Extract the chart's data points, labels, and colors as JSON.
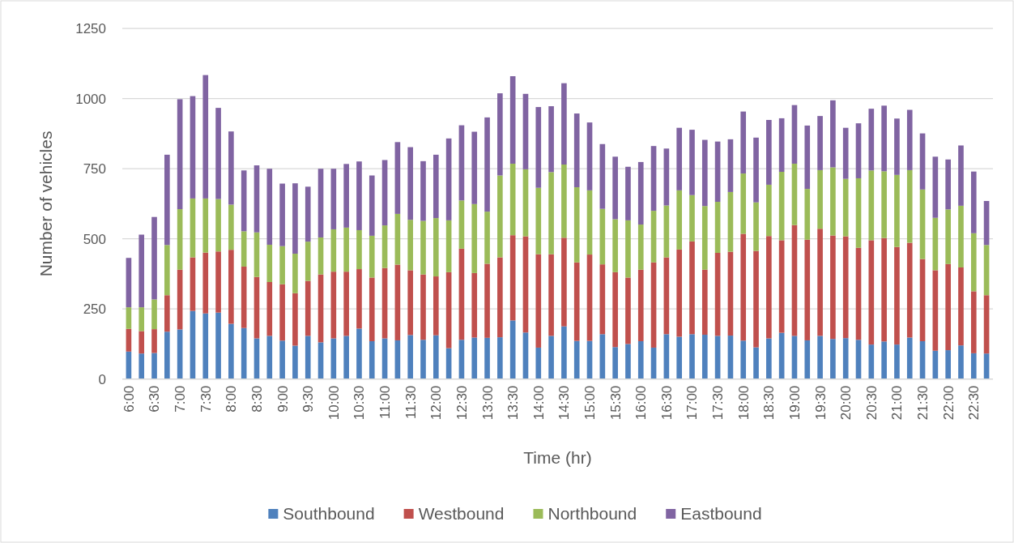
{
  "chart_data": {
    "type": "bar",
    "stacked": true,
    "xlabel": "Time (hr)",
    "ylabel": "Number of vehicles",
    "categories": [
      "6:00",
      null,
      "6:30",
      null,
      "7:00",
      null,
      "7:30",
      null,
      "8:00",
      null,
      "8:30",
      null,
      "9:00",
      null,
      "9:30",
      null,
      "10:00",
      null,
      "10:30",
      null,
      "11:00",
      null,
      "11:30",
      null,
      "12:00",
      null,
      "12:30",
      null,
      "13:00",
      null,
      "13:30",
      null,
      "14:00",
      null,
      "14:30",
      null,
      "15:00",
      null,
      "15:30",
      null,
      "16:00",
      null,
      "16:30",
      null,
      "17:00",
      null,
      "17:30",
      null,
      "18:00",
      null,
      "18:30",
      null,
      "19:00",
      null,
      "19:30",
      null,
      "20:00",
      null,
      "20:30",
      null,
      "21:00",
      null,
      "21:30",
      null,
      "22:00",
      null,
      "22:30",
      null
    ],
    "series": [
      {
        "name": "Southbound",
        "color": "#4f81bd",
        "values": [
          98,
          91,
          93,
          169,
          177,
          243,
          234,
          237,
          197,
          182,
          145,
          154,
          137,
          119,
          154,
          131,
          145,
          154,
          180,
          135,
          145,
          138,
          157,
          140,
          156,
          110,
          140,
          148,
          147,
          149,
          209,
          166,
          112,
          154,
          188,
          136,
          136,
          160,
          114,
          125,
          135,
          112,
          160,
          151,
          160,
          158,
          154,
          155,
          137,
          113,
          145,
          165,
          154,
          138,
          154,
          143,
          146,
          140,
          123,
          134,
          123,
          148,
          135,
          101,
          103,
          120,
          92,
          91
        ]
      },
      {
        "name": "Westbound",
        "color": "#c0504d",
        "values": [
          81,
          80,
          85,
          130,
          213,
          191,
          217,
          218,
          264,
          219,
          219,
          192,
          201,
          187,
          196,
          242,
          238,
          229,
          212,
          227,
          251,
          270,
          231,
          233,
          210,
          271,
          325,
          230,
          264,
          285,
          304,
          343,
          333,
          291,
          316,
          280,
          308,
          249,
          267,
          237,
          255,
          304,
          274,
          311,
          331,
          232,
          296,
          299,
          381,
          344,
          365,
          330,
          395,
          359,
          382,
          369,
          363,
          328,
          372,
          369,
          348,
          338,
          293,
          287,
          307,
          278,
          221,
          208
        ]
      },
      {
        "name": "Northbound",
        "color": "#9bbb59",
        "values": [
          77,
          85,
          106,
          179,
          216,
          210,
          193,
          187,
          161,
          126,
          159,
          133,
          136,
          141,
          140,
          132,
          151,
          157,
          139,
          149,
          152,
          181,
          180,
          191,
          208,
          185,
          172,
          246,
          186,
          292,
          255,
          239,
          237,
          293,
          261,
          268,
          229,
          198,
          189,
          204,
          161,
          184,
          185,
          211,
          165,
          227,
          182,
          213,
          215,
          173,
          183,
          244,
          219,
          181,
          209,
          243,
          205,
          248,
          249,
          238,
          257,
          259,
          248,
          187,
          195,
          220,
          207,
          179
        ]
      },
      {
        "name": "Eastbound",
        "color": "#8064a2",
        "values": [
          176,
          259,
          294,
          322,
          392,
          365,
          440,
          325,
          261,
          217,
          239,
          271,
          223,
          251,
          196,
          245,
          216,
          227,
          245,
          215,
          233,
          256,
          259,
          213,
          226,
          292,
          268,
          258,
          336,
          293,
          312,
          269,
          288,
          235,
          290,
          263,
          242,
          231,
          223,
          191,
          223,
          231,
          203,
          223,
          233,
          236,
          215,
          188,
          221,
          231,
          231,
          191,
          209,
          226,
          193,
          239,
          182,
          196,
          220,
          234,
          201,
          215,
          200,
          218,
          178,
          215,
          220,
          157
        ]
      }
    ],
    "ylim": [
      0,
      1250
    ],
    "yticks": [
      0,
      250,
      500,
      750,
      1000,
      1250
    ],
    "grid": "y",
    "legend": "bottom"
  }
}
